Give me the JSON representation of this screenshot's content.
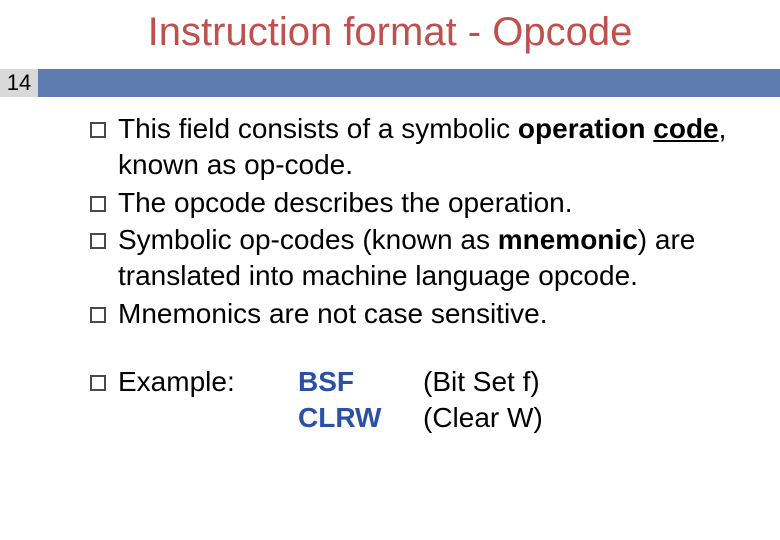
{
  "title": {
    "text": "Instruction format - Opcode",
    "color": "#bf504d"
  },
  "pageNumber": "14",
  "barColor": "#5f7cb0",
  "highlightColor": "#2a51a3",
  "bullets": [
    {
      "pre": "This field consists of a symbolic ",
      "bold1": "operation",
      "mid": " ",
      "bold2_underlined": "code",
      "post": ", known as op-code."
    },
    {
      "plain": "The opcode describes the operation."
    },
    {
      "pre": "Symbolic op-codes (known as ",
      "bold1": "mnemonic",
      "post": ") are translated into machine language opcode."
    },
    {
      "plain": "Mnemonics are not case sensitive."
    }
  ],
  "example": {
    "label": "Example:",
    "rows": [
      {
        "mnemonic": "BSF",
        "desc": "(Bit Set f)"
      },
      {
        "mnemonic": "CLRW",
        "desc": "(Clear W)"
      }
    ]
  }
}
